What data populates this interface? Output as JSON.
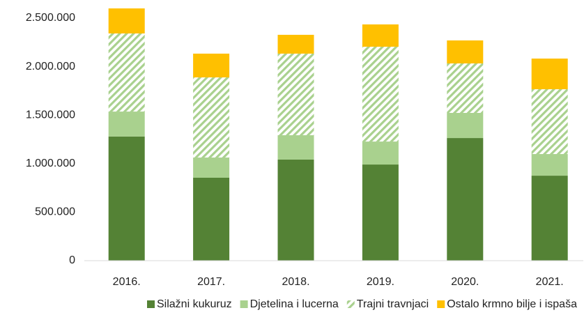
{
  "chart_data": {
    "type": "stacked_bar",
    "categories": [
      "2016.",
      "2017.",
      "2018.",
      "2019.",
      "2020.",
      "2021."
    ],
    "series": [
      {
        "name": "Silažni kukuruz",
        "color": "#548235",
        "values": [
          1280000,
          855000,
          1042000,
          991000,
          1264000,
          876000
        ]
      },
      {
        "name": "Djetelina i lucerna",
        "color": "#a9d18e",
        "values": [
          257000,
          208000,
          251000,
          237000,
          259000,
          223000
        ]
      },
      {
        "name": "Trajni travnjaci",
        "color": "#a9d18e",
        "pattern": "hatch",
        "values": [
          805000,
          826000,
          841000,
          977000,
          510000,
          668000
        ]
      },
      {
        "name": "Ostalo krmno bilje i ispaša",
        "color": "#ffc000",
        "values": [
          258000,
          245000,
          194000,
          230000,
          237000,
          316000
        ]
      }
    ],
    "ylim": [
      0,
      2500000
    ],
    "yticks": [
      0,
      {
        "value": 500000,
        "label": "500.000"
      },
      {
        "value": 1000000,
        "label": "1.000.000"
      },
      {
        "value": 1500000,
        "label": "1.500.000"
      },
      {
        "value": 2000000,
        "label": "2.000.000"
      },
      {
        "value": 2500000,
        "label": "2.500.000"
      }
    ],
    "grid": false,
    "legend": "bottom"
  }
}
